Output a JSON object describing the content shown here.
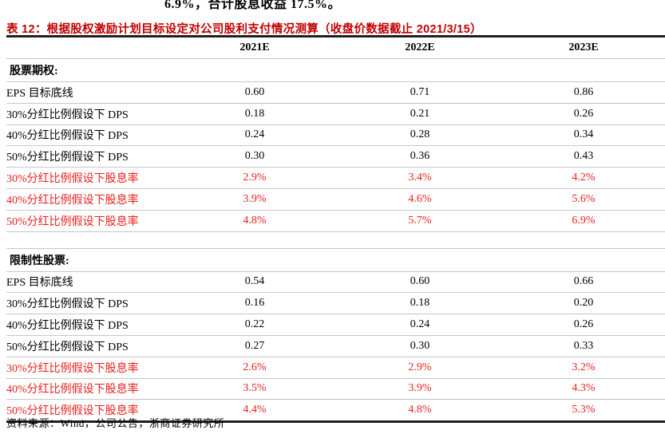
{
  "page": {
    "top_text": "6.9%，合计股息收益 17.5%。",
    "source_note": "资料来源：Wind，公司公告，浙商证券研究所"
  },
  "table": {
    "title": "表 12：根据股权激励计划目标设定对公司股利支付情况测算（收盘价数据截止 2021/3/15）",
    "columns": [
      "2021E",
      "2022E",
      "2023E"
    ],
    "sections": [
      {
        "header": "股票期权:",
        "rows": [
          {
            "label": "EPS 目标底线",
            "values": [
              "0.60",
              "0.71",
              "0.86"
            ],
            "color": "black"
          },
          {
            "label": "30%分红比例假设下 DPS",
            "values": [
              "0.18",
              "0.21",
              "0.26"
            ],
            "color": "black"
          },
          {
            "label": "40%分红比例假设下 DPS",
            "values": [
              "0.24",
              "0.28",
              "0.34"
            ],
            "color": "black"
          },
          {
            "label": "50%分红比例假设下 DPS",
            "values": [
              "0.30",
              "0.36",
              "0.43"
            ],
            "color": "black"
          },
          {
            "label": "30%分红比例假设下股息率",
            "values": [
              "2.9%",
              "3.4%",
              "4.2%"
            ],
            "color": "red"
          },
          {
            "label": "40%分红比例假设下股息率",
            "values": [
              "3.9%",
              "4.6%",
              "5.6%"
            ],
            "color": "red"
          },
          {
            "label": "50%分红比例假设下股息率",
            "values": [
              "4.8%",
              "5.7%",
              "6.9%"
            ],
            "color": "red"
          }
        ]
      },
      {
        "header": "限制性股票:",
        "rows": [
          {
            "label": "EPS 目标底线",
            "values": [
              "0.54",
              "0.60",
              "0.66"
            ],
            "color": "black"
          },
          {
            "label": "30%分红比例假设下 DPS",
            "values": [
              "0.16",
              "0.18",
              "0.20"
            ],
            "color": "black"
          },
          {
            "label": "40%分红比例假设下 DPS",
            "values": [
              "0.22",
              "0.24",
              "0.26"
            ],
            "color": "black"
          },
          {
            "label": "50%分红比例假设下 DPS",
            "values": [
              "0.27",
              "0.30",
              "0.33"
            ],
            "color": "black"
          },
          {
            "label": "30%分红比例假设下股息率",
            "values": [
              "2.6%",
              "2.9%",
              "3.2%"
            ],
            "color": "red"
          },
          {
            "label": "40%分红比例假设下股息率",
            "values": [
              "3.5%",
              "3.9%",
              "4.3%"
            ],
            "color": "red"
          },
          {
            "label": "50%分红比例假设下股息率",
            "values": [
              "4.4%",
              "4.8%",
              "5.3%"
            ],
            "color": "red"
          }
        ]
      }
    ],
    "colors": {
      "title_red": "#c00000",
      "data_red": "#e8201c",
      "thin_line": "#c6c6c6",
      "thick_line": "#1f1f1f"
    }
  }
}
